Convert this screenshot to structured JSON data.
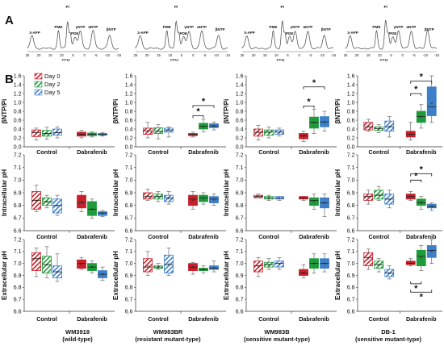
{
  "panel_letters": [
    "A",
    "B"
  ],
  "legend": {
    "entries": [
      "Day 0",
      "Day 2",
      "Day 5"
    ],
    "fill_colors": [
      "#c8202a",
      "#1f9a3a",
      "#3d7fc8"
    ]
  },
  "asterisk": "*",
  "spectra": [
    {
      "peaks": [
        "PME",
        "Pi",
        "PDE",
        "γNTP",
        "αNTP",
        "βNTP",
        "3-APP"
      ],
      "ppm_ticks": [
        "25",
        "20",
        "15",
        "10",
        "5",
        "0",
        "-5",
        "-10",
        "-15"
      ],
      "ppm_label": "PPM"
    },
    {
      "peaks": [
        "PME",
        "Pi",
        "PDE",
        "γNTP",
        "αNTP",
        "βNTP",
        "3-APP"
      ],
      "ppm_ticks": [
        "25",
        "20",
        "15",
        "10",
        "5",
        "0",
        "-5",
        "-10",
        "-15"
      ],
      "ppm_label": "PPM"
    },
    {
      "peaks": [
        "PME",
        "Pi",
        "PDE",
        "γNTP",
        "αNTP",
        "βNTP",
        "3-APP"
      ],
      "ppm_ticks": [
        "25",
        "20",
        "15",
        "10",
        "5",
        "0",
        "-5",
        "-10",
        "-15"
      ],
      "ppm_label": "PPM"
    },
    {
      "peaks": [
        "PME",
        "Pi",
        "PDE",
        "γNTP",
        "αNTP",
        "βNTP",
        "3-APP"
      ],
      "ppm_ticks": [
        "25",
        "20",
        "15",
        "10",
        "5",
        "0",
        "-5",
        "-10",
        "-15"
      ],
      "ppm_label": "PPM"
    }
  ],
  "columns": [
    {
      "name": "WM3918",
      "subtitle": "(wild-type)"
    },
    {
      "name": "WM983BR",
      "subtitle": "(resistant mutant-type)"
    },
    {
      "name": "WM983B",
      "subtitle": "(sensitive mutant-type)"
    },
    {
      "name": "DB-1",
      "subtitle": "(sensitive mutant-type)"
    }
  ],
  "chart_data": {
    "type": "box",
    "groups": [
      "Control",
      "Dabrafenib"
    ],
    "series_names": [
      "Day 0",
      "Day 2",
      "Day 5"
    ],
    "rows": [
      {
        "ylabel": "βNTP/Pi",
        "ylim": [
          0.0,
          1.6
        ],
        "ticks": [
          "0.0",
          "0.2",
          "0.4",
          "0.6",
          "0.8",
          "1.0",
          "1.2",
          "1.4",
          "1.6"
        ],
        "panels": [
          {
            "boxes": [
              [
                [
                  0.15,
                  0.23,
                  0.32,
                  0.38,
                  0.42
                ],
                [
                  0.17,
                  0.24,
                  0.3,
                  0.37,
                  0.44
                ],
                [
                  0.2,
                  0.26,
                  0.32,
                  0.4,
                  0.45
                ]
              ],
              [
                [
                  0.2,
                  0.24,
                  0.28,
                  0.33,
                  0.37
                ],
                [
                  0.22,
                  0.25,
                  0.28,
                  0.31,
                  0.34
                ],
                [
                  0.24,
                  0.26,
                  0.28,
                  0.3,
                  0.32
                ]
              ]
            ],
            "sig": []
          },
          {
            "boxes": [
              [
                [
                  0.2,
                  0.28,
                  0.36,
                  0.42,
                  0.55
                ],
                [
                  0.18,
                  0.3,
                  0.35,
                  0.43,
                  0.5
                ],
                [
                  0.22,
                  0.33,
                  0.38,
                  0.42,
                  0.45
                ]
              ],
              [
                [
                  0.22,
                  0.25,
                  0.28,
                  0.3,
                  0.33
                ],
                [
                  0.34,
                  0.4,
                  0.46,
                  0.53,
                  0.62
                ],
                [
                  0.38,
                  0.43,
                  0.47,
                  0.52,
                  0.56
                ]
              ]
            ],
            "sig": [
              [
                3,
                4,
                0.7
              ],
              [
                3,
                5,
                0.93
              ]
            ]
          },
          {
            "boxes": [
              [
                [
                  0.15,
                  0.24,
                  0.33,
                  0.4,
                  0.48
                ],
                [
                  0.2,
                  0.26,
                  0.33,
                  0.38,
                  0.45
                ],
                [
                  0.24,
                  0.28,
                  0.33,
                  0.38,
                  0.42
                ]
              ],
              [
                [
                  0.12,
                  0.18,
                  0.25,
                  0.3,
                  0.35
                ],
                [
                  0.3,
                  0.42,
                  0.55,
                  0.67,
                  0.85
                ],
                [
                  0.35,
                  0.45,
                  0.56,
                  0.68,
                  0.8
                ]
              ]
            ],
            "sig": [
              [
                3,
                4,
                0.92
              ],
              [
                3,
                5,
                1.35
              ]
            ]
          },
          {
            "boxes": [
              [
                [
                  0.35,
                  0.38,
                  0.45,
                  0.55,
                  0.62
                ],
                [
                  0.32,
                  0.37,
                  0.41,
                  0.45,
                  0.5
                ],
                [
                  0.22,
                  0.35,
                  0.45,
                  0.58,
                  0.68
                ]
              ],
              [
                [
                  0.15,
                  0.22,
                  0.28,
                  0.35,
                  0.55
                ],
                [
                  0.42,
                  0.55,
                  0.68,
                  0.8,
                  0.95
                ],
                [
                  0.55,
                  0.7,
                  0.9,
                  1.35,
                  1.6
                ]
              ]
            ],
            "sig": [
              [
                3,
                4,
                1.2
              ],
              [
                3,
                5,
                1.48
              ]
            ]
          }
        ]
      },
      {
        "ylabel": "Intracellular pH",
        "ylim": [
          6.6,
          7.2
        ],
        "ticks": [
          "6.6",
          "6.7",
          "6.8",
          "6.9",
          "7.0",
          "7.1",
          "7.2"
        ],
        "panels": [
          {
            "boxes": [
              [
                [
                  6.75,
                  6.77,
                  6.84,
                  6.91,
                  6.96
                ],
                [
                  6.78,
                  6.8,
                  6.83,
                  6.86,
                  6.88
                ],
                [
                  6.72,
                  6.74,
                  6.8,
                  6.85,
                  6.88
                ]
              ],
              [
                [
                  6.75,
                  6.78,
                  6.82,
                  6.88,
                  6.91
                ],
                [
                  6.7,
                  6.72,
                  6.77,
                  6.83,
                  6.85
                ],
                [
                  6.71,
                  6.72,
                  6.74,
                  6.75,
                  6.76
                ]
              ]
            ],
            "sig": []
          },
          {
            "boxes": [
              [
                [
                  6.84,
                  6.85,
                  6.87,
                  6.9,
                  6.93
                ],
                [
                  6.83,
                  6.85,
                  6.87,
                  6.89,
                  6.91
                ],
                [
                  6.81,
                  6.83,
                  6.86,
                  6.88,
                  6.91
                ]
              ],
              [
                [
                  6.77,
                  6.8,
                  6.85,
                  6.88,
                  6.91
                ],
                [
                  6.81,
                  6.83,
                  6.86,
                  6.88,
                  6.9
                ],
                [
                  6.8,
                  6.82,
                  6.85,
                  6.87,
                  6.89
                ]
              ]
            ],
            "sig": []
          },
          {
            "boxes": [
              [
                [
                  6.86,
                  6.86,
                  6.87,
                  6.88,
                  6.89
                ],
                [
                  6.84,
                  6.85,
                  6.86,
                  6.87,
                  6.88
                ],
                [
                  6.84,
                  6.85,
                  6.86,
                  6.87,
                  6.87
                ]
              ],
              [
                [
                  6.84,
                  6.85,
                  6.86,
                  6.87,
                  6.87
                ],
                [
                  6.77,
                  6.8,
                  6.84,
                  6.86,
                  6.89
                ],
                [
                  6.71,
                  6.78,
                  6.82,
                  6.86,
                  6.89
                ]
              ]
            ],
            "sig": []
          },
          {
            "boxes": [
              [
                [
                  6.81,
                  6.84,
                  6.87,
                  6.89,
                  6.92
                ],
                [
                  6.84,
                  6.85,
                  6.88,
                  6.92,
                  6.95
                ],
                [
                  6.78,
                  6.81,
                  6.85,
                  6.89,
                  6.92
                ]
              ],
              [
                [
                  6.84,
                  6.85,
                  6.87,
                  6.89,
                  6.91
                ],
                [
                  6.77,
                  6.8,
                  6.82,
                  6.85,
                  6.87
                ],
                [
                  6.76,
                  6.78,
                  6.79,
                  6.81,
                  6.82
                ]
              ]
            ],
            "sig": [
              [
                3,
                4,
                7.0
              ],
              [
                3,
                5,
                7.05
              ]
            ]
          }
        ]
      },
      {
        "ylabel": "Extracellular pH",
        "ylim": [
          6.6,
          7.2
        ],
        "ticks": [
          "6.6",
          "6.7",
          "6.8",
          "6.9",
          "7.0",
          "7.1",
          "7.2"
        ],
        "panels": [
          {
            "boxes": [
              [
                [
                  6.89,
                  6.94,
                  7.04,
                  7.09,
                  7.13
                ],
                [
                  6.88,
                  6.92,
                  6.99,
                  7.06,
                  7.14
                ],
                [
                  6.85,
                  6.88,
                  6.93,
                  6.98,
                  7.08
                ]
              ],
              [
                [
                  6.95,
                  6.96,
                  7.0,
                  7.03,
                  7.05
                ],
                [
                  6.92,
                  6.94,
                  6.97,
                  7.0,
                  7.02
                ],
                [
                  6.86,
                  6.88,
                  6.91,
                  6.94,
                  6.97
                ]
              ]
            ],
            "sig": []
          },
          {
            "boxes": [
              [
                [
                  6.9,
                  6.93,
                  6.97,
                  7.04,
                  7.1
                ],
                [
                  6.95,
                  6.96,
                  6.97,
                  6.98,
                  7.0
                ],
                [
                  6.9,
                  6.92,
                  6.99,
                  7.07,
                  7.13
                ]
              ],
              [
                [
                  6.91,
                  6.94,
                  6.97,
                  7.0,
                  7.01
                ],
                [
                  6.92,
                  6.94,
                  6.95,
                  6.96,
                  6.98
                ],
                [
                  6.93,
                  6.95,
                  6.96,
                  6.98,
                  7.02
                ]
              ]
            ],
            "sig": []
          },
          {
            "boxes": [
              [
                [
                  6.89,
                  6.93,
                  6.98,
                  7.02,
                  7.05
                ],
                [
                  6.95,
                  6.97,
                  6.99,
                  7.01,
                  7.04
                ],
                [
                  6.95,
                  6.97,
                  7.0,
                  7.02,
                  7.05
                ]
              ],
              [
                [
                  6.88,
                  6.9,
                  6.92,
                  6.95,
                  6.99
                ],
                [
                  6.92,
                  6.96,
                  7.0,
                  7.04,
                  7.08
                ],
                [
                  6.93,
                  6.96,
                  7.0,
                  7.04,
                  7.08
                ]
              ]
            ],
            "sig": []
          },
          {
            "boxes": [
              [
                [
                  6.95,
                  6.98,
                  7.05,
                  7.09,
                  7.12
                ],
                [
                  6.93,
                  6.96,
                  6.99,
                  7.02,
                  7.04
                ],
                [
                  6.87,
                  6.89,
                  6.92,
                  6.95,
                  6.98
                ]
              ],
              [
                [
                  6.98,
                  6.99,
                  7.0,
                  7.02,
                  7.04
                ],
                [
                  6.94,
                  6.98,
                  7.06,
                  7.11,
                  7.15
                ],
                [
                  7.0,
                  7.05,
                  7.11,
                  7.15,
                  7.2
                ]
              ]
            ],
            "sig": [
              [
                3,
                4,
                6.83
              ],
              [
                3,
                5,
                6.76
              ]
            ]
          }
        ]
      }
    ]
  }
}
